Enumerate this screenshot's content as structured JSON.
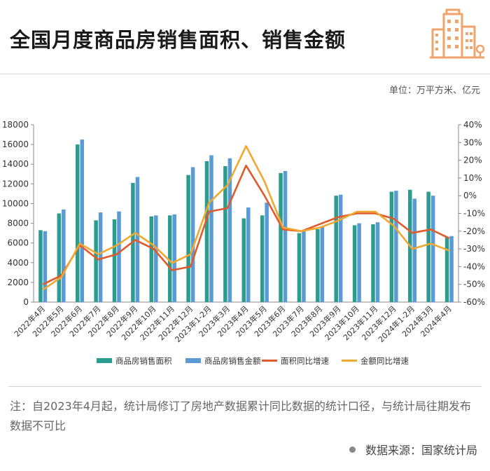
{
  "header": {
    "title": "全国月度商品房销售面积、销售金额",
    "logo_icon": "buildings-icon"
  },
  "unit_label": "单位：万平方米、亿元",
  "note": "注：自2023年4月起，统计局修订了房地产数据累计同比数据的统计口径，与统计局往期发布数据不可比",
  "source": "数据来源：国家统计局",
  "colors": {
    "area_bar": "#2a9d8f",
    "amount_bar": "#5b9bd5",
    "area_yoy": "#e05a2b",
    "amount_yoy": "#f0a830",
    "logo": "#f0a36a"
  },
  "chart_data": {
    "type": "bar",
    "categories": [
      "2022年4月",
      "2022年5月",
      "2022年6月",
      "2022年7月",
      "2022年8月",
      "2022年9月",
      "2022年10月",
      "2022年11月",
      "2022年12月",
      "2023年1-2月",
      "2023年3月",
      "2023年4月",
      "2023年5月",
      "2023年6月",
      "2023年7月",
      "2023年8月",
      "2023年9月",
      "2023年10月",
      "2023年11月",
      "2023年12月",
      "2024年1-2月",
      "2024年3月",
      "2024年4月"
    ],
    "series": [
      {
        "name": "商品房销售面积",
        "kind": "bar",
        "axis": "left",
        "values": [
          7300,
          9000,
          16000,
          8300,
          8400,
          12100,
          8700,
          8800,
          12900,
          14300,
          13800,
          8500,
          8800,
          13100,
          7000,
          7400,
          10800,
          7800,
          7900,
          11200,
          11400,
          11200,
          6600
        ]
      },
      {
        "name": "商品房销售金额",
        "kind": "bar",
        "axis": "left",
        "values": [
          7200,
          9400,
          16500,
          9100,
          9200,
          12700,
          8800,
          8900,
          13700,
          14900,
          14600,
          9600,
          10100,
          13300,
          7200,
          7700,
          10900,
          8000,
          8100,
          11300,
          10500,
          10800,
          6700
        ]
      },
      {
        "name": "面积同比增速",
        "kind": "line",
        "axis": "right",
        "values": [
          -50,
          -45,
          -28,
          -36,
          -33,
          -25,
          -30,
          -42,
          -40,
          -9,
          -7,
          17,
          0,
          -19,
          -20,
          -16,
          -12,
          -10,
          -10,
          -13,
          -21,
          -19,
          -24
        ]
      },
      {
        "name": "金额同比增速",
        "kind": "line",
        "axis": "right",
        "values": [
          -53,
          -46,
          -27,
          -33,
          -28,
          -21,
          -28,
          -38,
          -33,
          -4,
          6,
          28,
          8,
          -18,
          -20,
          -18,
          -14,
          -9,
          -9,
          -17,
          -30,
          -27,
          -31
        ]
      }
    ],
    "title": "全国月度商品房销售面积、销售金额",
    "ylim_left": [
      0,
      18000
    ],
    "yticks_left": [
      "0",
      "2000",
      "4000",
      "6000",
      "8000",
      "10000",
      "12000",
      "14000",
      "16000",
      "18000"
    ],
    "ylim_right": [
      -60,
      40
    ],
    "yticks_right": [
      "-60%",
      "-50%",
      "-40%",
      "-30%",
      "-20%",
      "-10%",
      "0%",
      "10%",
      "20%",
      "30%",
      "40%"
    ],
    "legend": [
      "商品房销售面积",
      "商品房销售金额",
      "面积同比增速",
      "金额同比增速"
    ],
    "legend_position": "bottom",
    "grid": false
  }
}
